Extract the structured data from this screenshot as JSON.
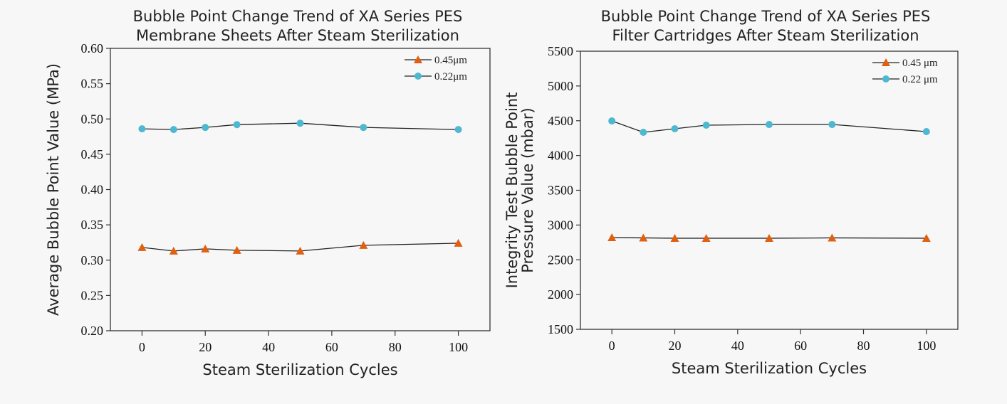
{
  "chart_data": [
    {
      "type": "line",
      "title": [
        "Bubble Point Change Trend of XA Series PES",
        "Membrane Sheets After Steam Sterilization"
      ],
      "xlabel": "Steam Sterilization Cycles",
      "ylabel": [
        "Average Bubble Point Value (MPa)"
      ],
      "xlim": [
        -10,
        110
      ],
      "ylim": [
        0.2,
        0.6
      ],
      "xticks": [
        0,
        20,
        40,
        60,
        80,
        100
      ],
      "yticks": [
        0.2,
        0.25,
        0.3,
        0.35,
        0.4,
        0.45,
        0.5,
        0.55,
        0.6
      ],
      "ytick_labels": [
        "0.20",
        "0.25",
        "0.30",
        "0.35",
        "0.40",
        "0.45",
        "0.50",
        "0.55",
        "0.60"
      ],
      "grid": false,
      "legend_position": "top-right",
      "x": [
        0,
        10,
        20,
        30,
        50,
        70,
        100
      ],
      "series": [
        {
          "name": "0.45μm",
          "marker": "triangle",
          "color": "#e0600f",
          "values": [
            0.318,
            0.313,
            0.316,
            0.314,
            0.313,
            0.321,
            0.324
          ]
        },
        {
          "name": "0.22μm",
          "marker": "circle",
          "color": "#4db8d0",
          "values": [
            0.486,
            0.485,
            0.488,
            0.492,
            0.494,
            0.488,
            0.485
          ]
        }
      ]
    },
    {
      "type": "line",
      "title": [
        "Bubble Point Change Trend of XA Series PES",
        "Filter Cartridges After Steam Sterilization"
      ],
      "xlabel": "Steam Sterilization Cycles",
      "ylabel": [
        "Integrity Test Bubble Point",
        "Pressure Value (mbar)"
      ],
      "xlim": [
        -10,
        110
      ],
      "ylim": [
        1500,
        5500
      ],
      "xticks": [
        0,
        20,
        40,
        60,
        80,
        100
      ],
      "yticks": [
        1500,
        2000,
        2500,
        3000,
        3500,
        4000,
        4500,
        5000,
        5500
      ],
      "ytick_labels": [
        "1500",
        "2000",
        "2500",
        "3000",
        "3500",
        "4000",
        "4500",
        "5000",
        "5500"
      ],
      "grid": false,
      "legend_position": "top-right",
      "x": [
        0,
        10,
        20,
        30,
        50,
        70,
        100
      ],
      "series": [
        {
          "name": "0.45 μm",
          "marker": "triangle",
          "color": "#e0600f",
          "values": [
            2820,
            2815,
            2810,
            2810,
            2810,
            2815,
            2810
          ]
        },
        {
          "name": "0.22 μm",
          "marker": "circle",
          "color": "#4db8d0",
          "values": [
            4497,
            4334,
            4385,
            4436,
            4446,
            4446,
            4344
          ]
        }
      ]
    }
  ]
}
